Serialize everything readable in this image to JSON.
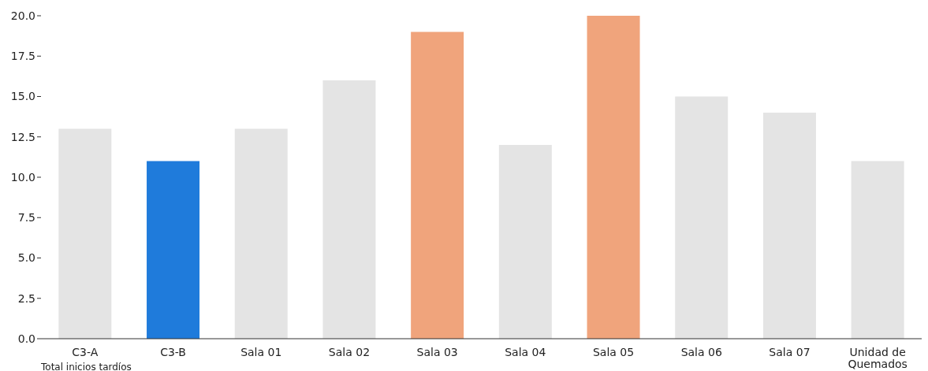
{
  "chart_data": {
    "type": "bar",
    "xlabel": "Total inicios tardíos",
    "categories": [
      "C3-A",
      "C3-B",
      "Sala 01",
      "Sala 02",
      "Sala 03",
      "Sala 04",
      "Sala 05",
      "Sala 06",
      "Sala 07",
      "Unidad de Quemados"
    ],
    "values": [
      13,
      11,
      13,
      16,
      19,
      12,
      20,
      15,
      14,
      11
    ],
    "colors": [
      "#e4e4e4",
      "#1f7bdb",
      "#e4e4e4",
      "#e4e4e4",
      "#f0a47c",
      "#e4e4e4",
      "#f0a47c",
      "#e4e4e4",
      "#e4e4e4",
      "#e4e4e4"
    ],
    "ylim": [
      0,
      20
    ],
    "yticks": [
      {
        "value": 0,
        "label": "0.0"
      },
      {
        "value": 2.5,
        "label": "2.5"
      },
      {
        "value": 5,
        "label": "5.0"
      },
      {
        "value": 7.5,
        "label": "7.5"
      },
      {
        "value": 10,
        "label": "10.0"
      },
      {
        "value": 12.5,
        "label": "12.5"
      },
      {
        "value": 15,
        "label": "15.0"
      },
      {
        "value": 17.5,
        "label": "17.5"
      },
      {
        "value": 20,
        "label": "20.0"
      }
    ],
    "grid": false
  }
}
